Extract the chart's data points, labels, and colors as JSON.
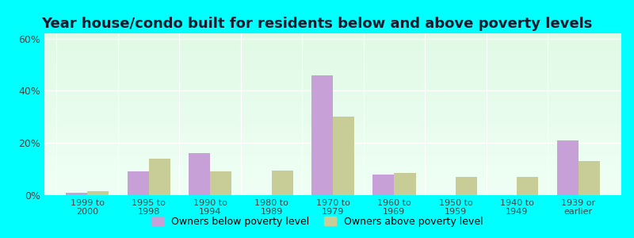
{
  "title": "Year house/condo built for residents below and above poverty levels",
  "categories": [
    "1999 to\n2000",
    "1995 to\n1998",
    "1990 to\n1994",
    "1980 to\n1989",
    "1970 to\n1979",
    "1960 to\n1969",
    "1950 to\n1959",
    "1940 to\n1949",
    "1939 or\nearlier"
  ],
  "below_poverty": [
    1.0,
    9.0,
    16.0,
    0.0,
    46.0,
    8.0,
    0.0,
    0.0,
    21.0
  ],
  "above_poverty": [
    1.5,
    14.0,
    9.0,
    9.5,
    30.0,
    8.5,
    7.0,
    7.0,
    13.0
  ],
  "below_color": "#c8a0d8",
  "above_color": "#c8cc96",
  "outer_bg": "#00ffff",
  "ylim": [
    0,
    62
  ],
  "yticks": [
    0,
    20,
    40,
    60
  ],
  "ytick_labels": [
    "0%",
    "20%",
    "40%",
    "60%"
  ],
  "title_fontsize": 13,
  "legend_below_label": "Owners below poverty level",
  "legend_above_label": "Owners above poverty level",
  "bar_width": 0.35
}
